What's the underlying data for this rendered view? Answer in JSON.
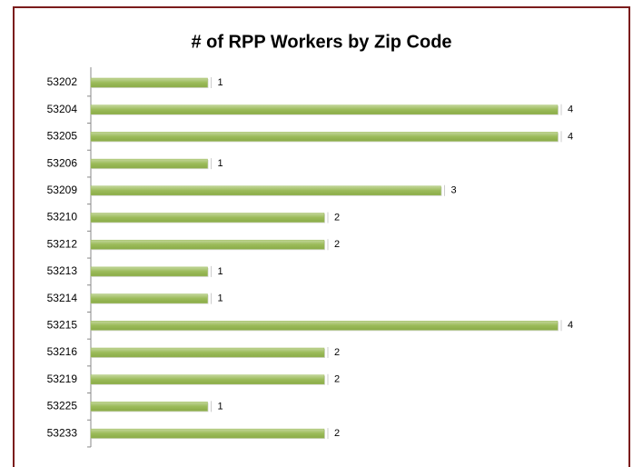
{
  "chart_data": {
    "type": "barh",
    "title": "# of RPP Workers by Zip Code",
    "categories": [
      "53202",
      "53204",
      "53205",
      "53206",
      "53209",
      "53210",
      "53212",
      "53213",
      "53214",
      "53215",
      "53216",
      "53219",
      "53225",
      "53233"
    ],
    "values": [
      1,
      4,
      4,
      1,
      3,
      2,
      2,
      1,
      1,
      4,
      2,
      2,
      1,
      2
    ],
    "color": "#9bbb59",
    "xlim": [
      0,
      4
    ]
  }
}
